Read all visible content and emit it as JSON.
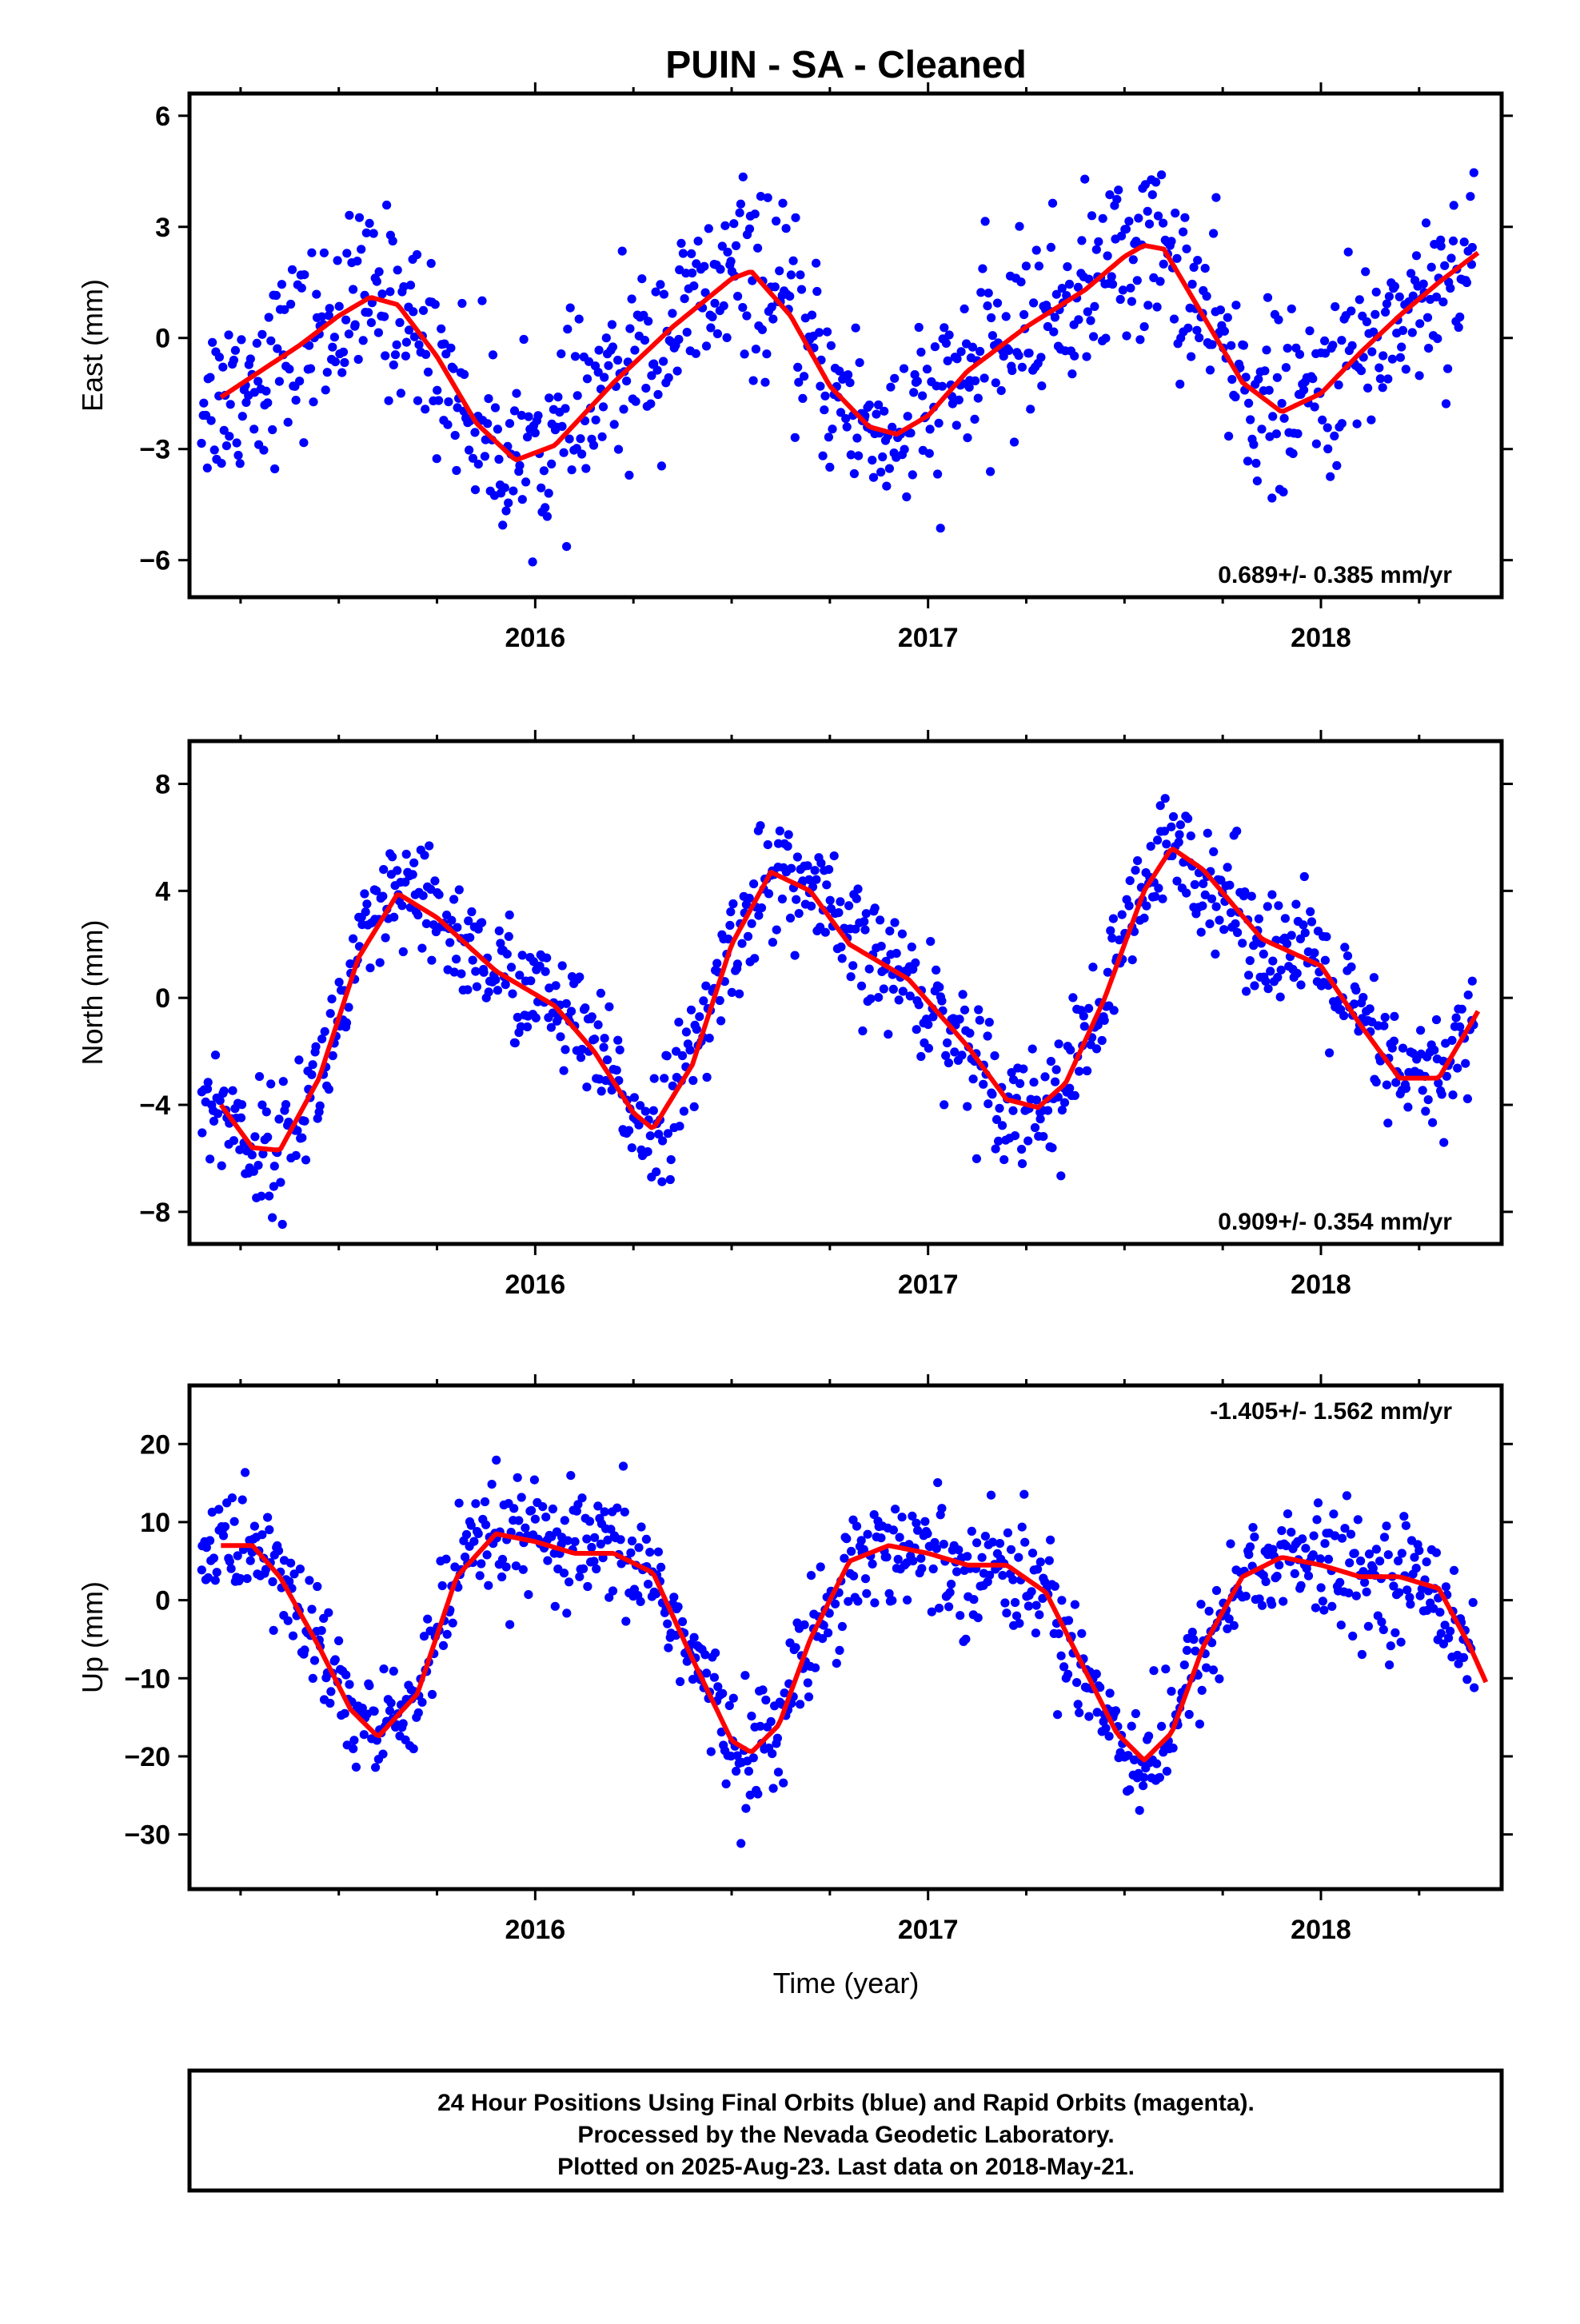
{
  "figure": {
    "title": "PUIN  - SA - Cleaned",
    "xlabel": "Time (year)",
    "footer_lines": [
      "24 Hour Positions Using Final Orbits (blue) and Rapid Orbits (magenta).",
      "Processed by the Nevada Geodetic Laboratory.",
      "Plotted on 2025-Aug-23. Last data on 2018-May-21."
    ],
    "colors": {
      "points": "#0000ff",
      "fit": "#ff0000"
    }
  },
  "chart_data": [
    {
      "type": "scatter",
      "name": "east",
      "ylabel": "East (mm)",
      "xlim": [
        2015.12,
        2018.46
      ],
      "ylim": [
        -7,
        6.6
      ],
      "yticks": [
        6,
        3,
        0,
        -3,
        -6
      ],
      "xticks": [
        2016,
        2017,
        2018
      ],
      "rate_text": "0.689+/- 0.385 mm/yr",
      "rate_position": "bottom-right",
      "fit_x": [
        2015.2,
        2015.3,
        2015.4,
        2015.5,
        2015.58,
        2015.65,
        2015.75,
        2015.85,
        2015.95,
        2016.05,
        2016.2,
        2016.35,
        2016.5,
        2016.55,
        2016.65,
        2016.75,
        2016.85,
        2016.92,
        2017.0,
        2017.1,
        2017.25,
        2017.4,
        2017.5,
        2017.55,
        2017.6,
        2017.7,
        2017.8,
        2017.9,
        2018.0,
        2018.1,
        2018.2,
        2018.3,
        2018.4
      ],
      "fit_y": [
        -1.6,
        -0.9,
        -0.2,
        0.6,
        1.1,
        0.9,
        -0.5,
        -2.3,
        -3.3,
        -2.9,
        -1.2,
        0.3,
        1.6,
        1.8,
        0.6,
        -1.3,
        -2.4,
        -2.6,
        -2.1,
        -0.9,
        0.3,
        1.3,
        2.2,
        2.5,
        2.4,
        0.6,
        -1.2,
        -2.0,
        -1.5,
        -0.4,
        0.6,
        1.5,
        2.3
      ],
      "trend_points": [
        [
          2015.15,
          -1.8
        ],
        [
          2015.3,
          -0.8
        ],
        [
          2015.45,
          0.3
        ],
        [
          2015.6,
          0.9
        ],
        [
          2015.75,
          -0.4
        ],
        [
          2015.9,
          -2.8
        ],
        [
          2016.0,
          -3.3
        ],
        [
          2016.1,
          -2.5
        ],
        [
          2016.25,
          -0.8
        ],
        [
          2016.4,
          0.7
        ],
        [
          2016.55,
          1.7
        ],
        [
          2016.7,
          -0.4
        ],
        [
          2016.85,
          -2.3
        ],
        [
          2016.95,
          -2.6
        ],
        [
          2017.05,
          -1.6
        ],
        [
          2017.2,
          -0.1
        ],
        [
          2017.35,
          1.0
        ],
        [
          2017.5,
          2.2
        ],
        [
          2017.6,
          2.4
        ],
        [
          2017.75,
          -0.2
        ],
        [
          2017.9,
          -1.9
        ],
        [
          2018.05,
          -1.0
        ],
        [
          2018.2,
          0.6
        ],
        [
          2018.38,
          2.0
        ]
      ],
      "noise_amplitude": 1.6
    },
    {
      "type": "scatter",
      "name": "north",
      "ylabel": "North (mm)",
      "xlim": [
        2015.12,
        2018.46
      ],
      "ylim": [
        -9.2,
        9.6
      ],
      "yticks": [
        8,
        4,
        0,
        -4,
        -8
      ],
      "xticks": [
        2016,
        2017,
        2018
      ],
      "rate_text": "0.909+/- 0.354 mm/yr",
      "rate_position": "bottom-right",
      "fit_x": [
        2015.2,
        2015.28,
        2015.35,
        2015.45,
        2015.55,
        2015.65,
        2015.75,
        2015.9,
        2016.05,
        2016.15,
        2016.25,
        2016.3,
        2016.4,
        2016.5,
        2016.6,
        2016.7,
        2016.8,
        2016.95,
        2017.1,
        2017.2,
        2017.28,
        2017.35,
        2017.45,
        2017.55,
        2017.62,
        2017.7,
        2017.85,
        2018.0,
        2018.1,
        2018.2,
        2018.3,
        2018.4
      ],
      "fit_y": [
        -4.0,
        -5.6,
        -5.7,
        -3.0,
        1.5,
        3.9,
        3.0,
        1.0,
        -0.3,
        -2.0,
        -4.3,
        -4.9,
        -2.5,
        2.0,
        4.7,
        4.0,
        2.0,
        0.7,
        -1.8,
        -3.8,
        -4.1,
        -3.2,
        0.0,
        4.0,
        5.6,
        4.8,
        2.2,
        1.2,
        -1.0,
        -3.0,
        -3.0,
        -0.5
      ],
      "noise_amplitude": 1.5
    },
    {
      "type": "scatter",
      "name": "up",
      "ylabel": "Up (mm)",
      "xlim": [
        2015.12,
        2018.46
      ],
      "ylim": [
        -37,
        27.5
      ],
      "yticks": [
        20,
        10,
        0,
        -10,
        -20,
        -30
      ],
      "xticks": [
        2016,
        2017,
        2018
      ],
      "rate_text": "-1.405+/- 1.562 mm/yr",
      "rate_position": "top-right",
      "fit_x": [
        2015.2,
        2015.28,
        2015.35,
        2015.45,
        2015.53,
        2015.6,
        2015.7,
        2015.8,
        2015.9,
        2016.0,
        2016.1,
        2016.2,
        2016.3,
        2016.4,
        2016.5,
        2016.55,
        2016.62,
        2016.7,
        2016.8,
        2016.9,
        2017.0,
        2017.1,
        2017.2,
        2017.3,
        2017.4,
        2017.48,
        2017.55,
        2017.62,
        2017.7,
        2017.8,
        2017.9,
        2018.0,
        2018.1,
        2018.2,
        2018.3,
        2018.38,
        2018.42
      ],
      "fit_y": [
        7.0,
        7.0,
        3.0,
        -6.0,
        -14.0,
        -17.5,
        -12.0,
        3.0,
        8.5,
        7.5,
        6.0,
        6.0,
        3.5,
        -7.5,
        -18.0,
        -19.5,
        -16.0,
        -5.0,
        5.0,
        7.0,
        6.0,
        4.5,
        4.5,
        1.0,
        -9.0,
        -17.0,
        -20.5,
        -17.0,
        -6.0,
        3.0,
        5.5,
        4.5,
        3.0,
        3.0,
        1.5,
        -6.0,
        -10.5
      ],
      "noise_amplitude": 5.0
    }
  ]
}
